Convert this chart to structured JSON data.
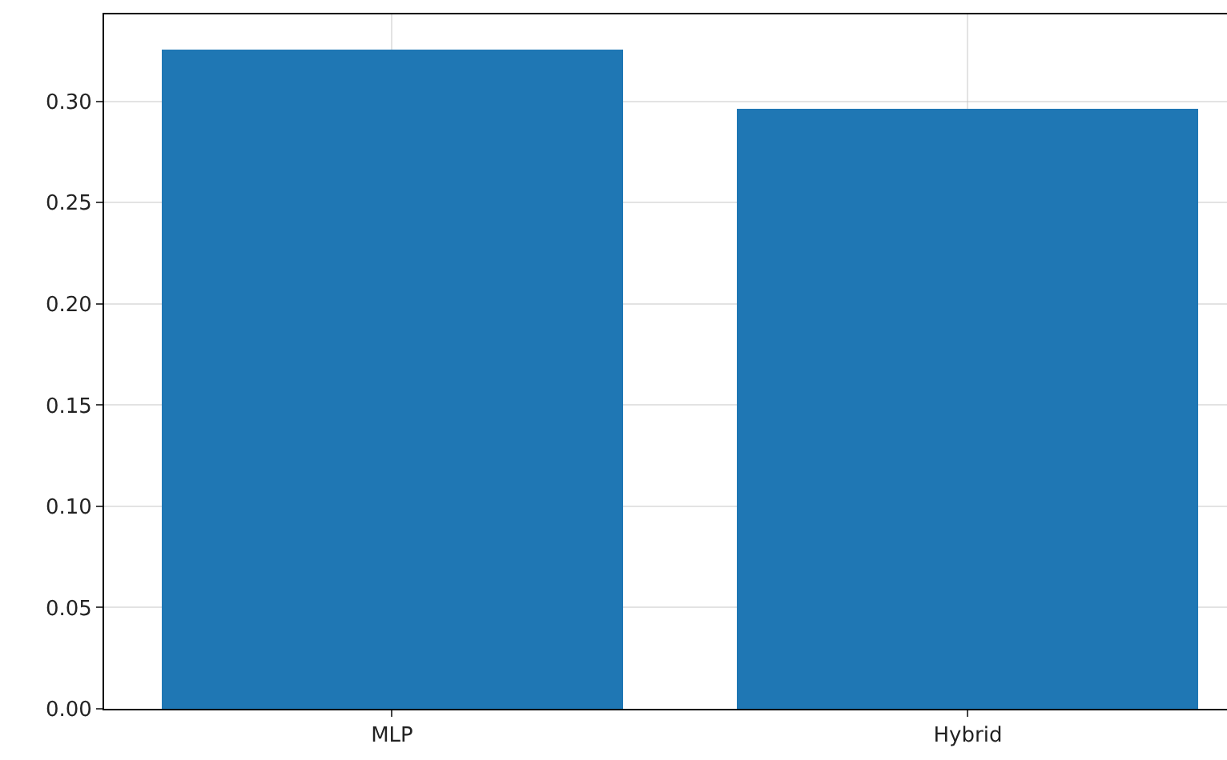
{
  "chart_data": {
    "type": "bar",
    "categories": [
      "MLP",
      "Hybrid"
    ],
    "values": [
      0.326,
      0.296
    ],
    "color": "#1f77b4",
    "ylim": [
      0,
      0.343
    ],
    "yticks": [
      {
        "value": 0,
        "label": "0.00"
      },
      {
        "value": 0.05,
        "label": "0.05"
      },
      {
        "value": 0.1,
        "label": "0.10"
      },
      {
        "value": 0.15,
        "label": "0.15"
      },
      {
        "value": 0.2,
        "label": "0.20"
      },
      {
        "value": 0.25,
        "label": "0.25"
      },
      {
        "value": 0.3,
        "label": "0.30"
      }
    ],
    "grid": true
  }
}
